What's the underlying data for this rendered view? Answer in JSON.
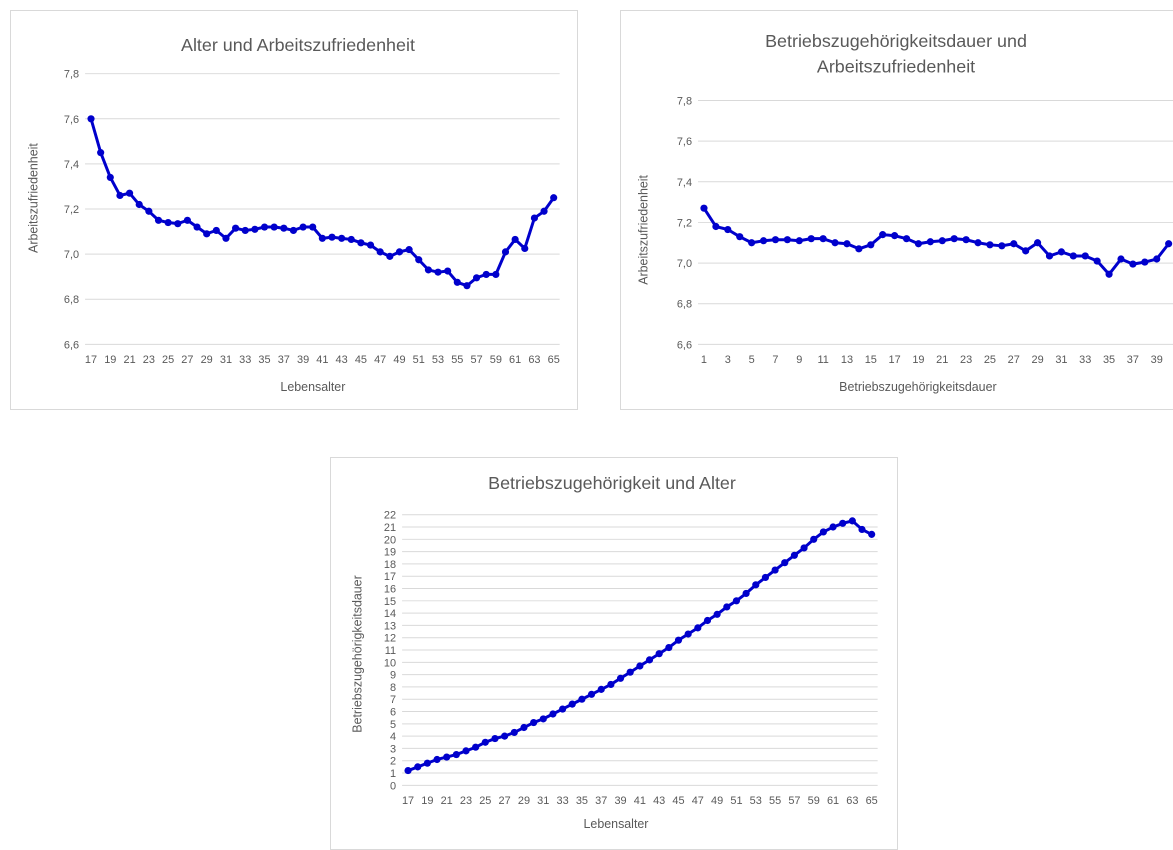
{
  "chart_data": [
    {
      "type": "line",
      "title": "Alter und Arbeitszufriedenheit",
      "xlabel": "Lebensalter",
      "ylabel": "Arbeitszufriedenheit",
      "ylim": [
        6.6,
        7.8
      ],
      "yticks": [
        "6,6",
        "6,8",
        "7,0",
        "7,2",
        "7,4",
        "7,6",
        "7,8"
      ],
      "x": [
        17,
        18,
        19,
        20,
        21,
        22,
        23,
        24,
        25,
        26,
        27,
        28,
        29,
        30,
        31,
        32,
        33,
        34,
        35,
        36,
        37,
        38,
        39,
        40,
        41,
        42,
        43,
        44,
        45,
        46,
        47,
        48,
        49,
        50,
        51,
        52,
        53,
        54,
        55,
        56,
        57,
        58,
        59,
        60,
        61,
        62,
        63,
        64,
        65
      ],
      "xtick_labels": [
        "17",
        "19",
        "21",
        "23",
        "25",
        "27",
        "29",
        "31",
        "33",
        "35",
        "37",
        "39",
        "41",
        "43",
        "45",
        "47",
        "49",
        "51",
        "53",
        "55",
        "57",
        "59",
        "61",
        "63",
        "65"
      ],
      "series": [
        {
          "values": [
            7.6,
            7.45,
            7.34,
            7.26,
            7.27,
            7.22,
            7.19,
            7.15,
            7.14,
            7.135,
            7.15,
            7.12,
            7.09,
            7.105,
            7.07,
            7.115,
            7.105,
            7.11,
            7.12,
            7.12,
            7.115,
            7.105,
            7.12,
            7.12,
            7.07,
            7.075,
            7.07,
            7.065,
            7.05,
            7.04,
            7.01,
            6.99,
            7.01,
            7.02,
            6.975,
            6.93,
            6.92,
            6.925,
            6.875,
            6.86,
            6.895,
            6.91,
            6.91,
            7.01,
            7.065,
            7.025,
            7.16,
            7.19,
            7.25
          ]
        }
      ],
      "grid": true,
      "legend": "none"
    },
    {
      "type": "line",
      "title": "Betriebszugehörigkeitsdauer und Arbeitszufriedenheit",
      "title_lines": [
        "Betriebszugehörigkeitsdauer und",
        "Arbeitszufriedenheit"
      ],
      "xlabel": "Betriebszugehörigkeitsdauer",
      "ylabel": "Arbeitszufriedenheit",
      "ylim": [
        6.6,
        7.8
      ],
      "yticks": [
        "6,6",
        "6,8",
        "7,0",
        "7,2",
        "7,4",
        "7,6",
        "7,8"
      ],
      "x": [
        1,
        2,
        3,
        4,
        5,
        6,
        7,
        8,
        9,
        10,
        11,
        12,
        13,
        14,
        15,
        16,
        17,
        18,
        19,
        20,
        21,
        22,
        23,
        24,
        25,
        26,
        27,
        28,
        29,
        30,
        31,
        32,
        33,
        34,
        35,
        36,
        37,
        38,
        39,
        40
      ],
      "xtick_labels": [
        "1",
        "3",
        "5",
        "7",
        "9",
        "11",
        "13",
        "15",
        "17",
        "19",
        "21",
        "23",
        "25",
        "27",
        "29",
        "31",
        "33",
        "35",
        "37",
        "39"
      ],
      "series": [
        {
          "values": [
            7.27,
            7.18,
            7.165,
            7.13,
            7.1,
            7.11,
            7.115,
            7.115,
            7.11,
            7.12,
            7.12,
            7.1,
            7.095,
            7.07,
            7.09,
            7.14,
            7.135,
            7.12,
            7.095,
            7.105,
            7.11,
            7.12,
            7.115,
            7.1,
            7.09,
            7.085,
            7.095,
            7.06,
            7.1,
            7.035,
            7.055,
            7.035,
            7.035,
            7.01,
            6.945,
            7.02,
            6.995,
            7.005,
            7.02,
            7.095
          ]
        }
      ],
      "grid": true,
      "legend": "none"
    },
    {
      "type": "line",
      "title": "Betriebszugehörigkeit und Alter",
      "xlabel": "Lebensalter",
      "ylabel": "Betriebszugehörigkeitsdauer",
      "ylim": [
        0,
        22
      ],
      "yticks": [
        "0",
        "1",
        "2",
        "3",
        "4",
        "5",
        "6",
        "7",
        "8",
        "9",
        "10",
        "11",
        "12",
        "13",
        "14",
        "15",
        "16",
        "17",
        "18",
        "19",
        "20",
        "21",
        "22"
      ],
      "x": [
        17,
        18,
        19,
        20,
        21,
        22,
        23,
        24,
        25,
        26,
        27,
        28,
        29,
        30,
        31,
        32,
        33,
        34,
        35,
        36,
        37,
        38,
        39,
        40,
        41,
        42,
        43,
        44,
        45,
        46,
        47,
        48,
        49,
        50,
        51,
        52,
        53,
        54,
        55,
        56,
        57,
        58,
        59,
        60,
        61,
        62,
        63,
        64,
        65
      ],
      "xtick_labels": [
        "17",
        "19",
        "21",
        "23",
        "25",
        "27",
        "29",
        "31",
        "33",
        "35",
        "37",
        "39",
        "41",
        "43",
        "45",
        "47",
        "49",
        "51",
        "53",
        "55",
        "57",
        "59",
        "61",
        "63",
        "65"
      ],
      "series": [
        {
          "values": [
            1.2,
            1.5,
            1.8,
            2.1,
            2.3,
            2.5,
            2.8,
            3.1,
            3.5,
            3.8,
            4.0,
            4.3,
            4.7,
            5.1,
            5.4,
            5.8,
            6.2,
            6.6,
            7.0,
            7.4,
            7.8,
            8.2,
            8.7,
            9.2,
            9.7,
            10.2,
            10.7,
            11.2,
            11.8,
            12.3,
            12.8,
            13.4,
            13.9,
            14.5,
            15.0,
            15.6,
            16.3,
            16.9,
            17.5,
            18.1,
            18.7,
            19.3,
            20.0,
            20.6,
            21.0,
            21.3,
            21.5,
            20.8,
            20.4
          ]
        }
      ],
      "grid": true,
      "legend": "none"
    }
  ]
}
